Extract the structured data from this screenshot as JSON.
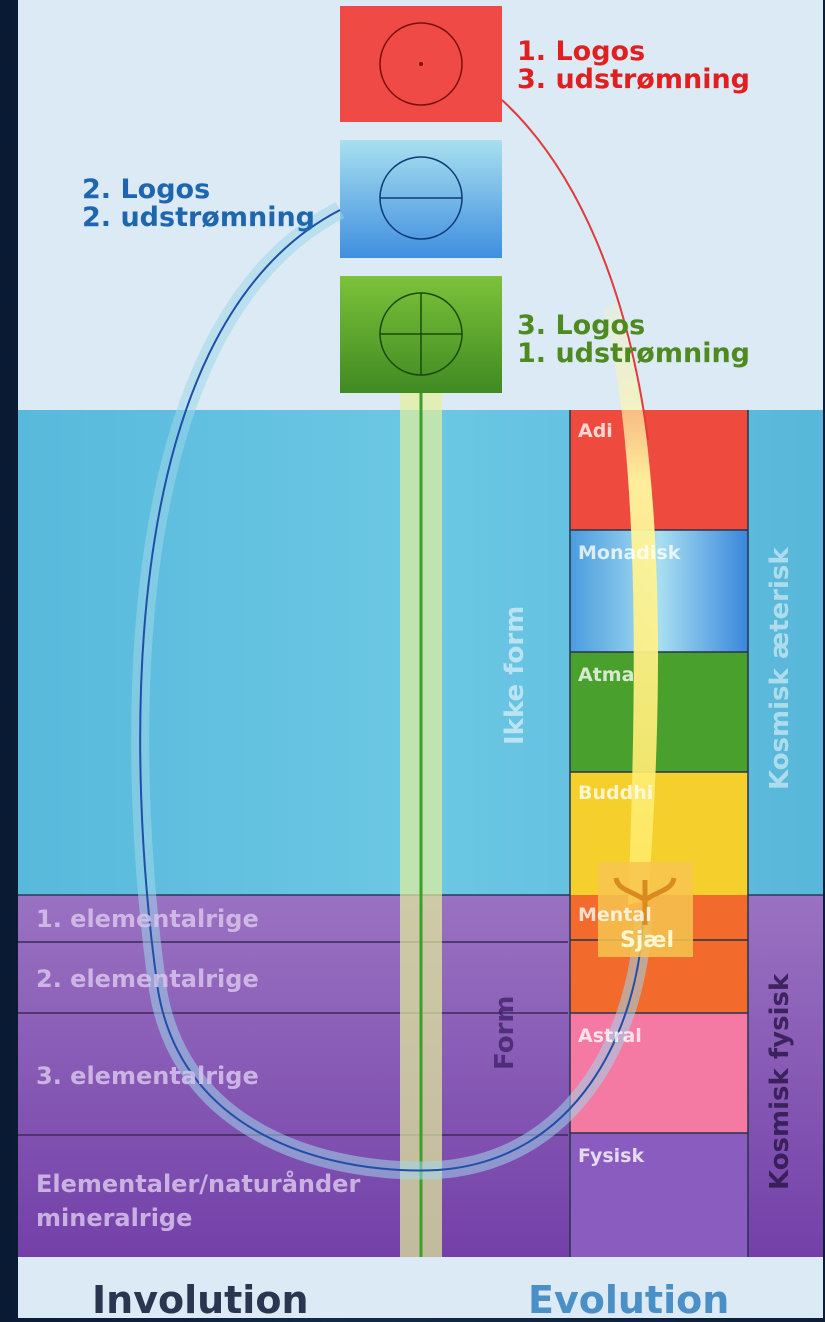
{
  "logos": [
    {
      "line1": "1. Logos",
      "line2": "3. udstrømning",
      "color": "#e02020"
    },
    {
      "line1": "2. Logos",
      "line2": "2. udstrømning",
      "color": "#1e66b0"
    },
    {
      "line1": "3. Logos",
      "line2": "1. udstrømning",
      "color": "#4e8a1f"
    }
  ],
  "planes": [
    "Adi",
    "Monadisk",
    "Atma",
    "Buddhi",
    "Mental",
    "Astral",
    "Fysisk"
  ],
  "regions": {
    "formless": "Ikke form",
    "form": "Form"
  },
  "cosmic": {
    "etheric": "Kosmisk æterisk",
    "physical": "Kosmisk fysisk"
  },
  "realms": [
    "1. elementalrige",
    "2. elementalrige",
    "3. elementalrige",
    "Elementaler/naturånder",
    "mineralrige"
  ],
  "soul_label": "Sjæl",
  "footer": {
    "involution": "Involution",
    "evolution": "Evolution"
  },
  "colors": {
    "red": "#e53a3a",
    "blue": "#3aa0e0",
    "green": "#4c9a2a",
    "yellow": "#f2d22a",
    "orange": "#f26a2a",
    "pink": "#f57aa5",
    "violet": "#8a55b8"
  }
}
